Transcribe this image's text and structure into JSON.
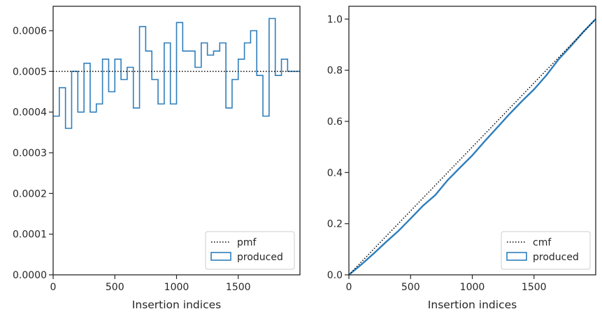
{
  "chart_data": [
    {
      "type": "histogram",
      "title": "",
      "xlabel": "Insertion indices",
      "ylabel": "",
      "xlim": [
        0,
        2000
      ],
      "ylim": [
        0,
        0.00066
      ],
      "x_ticks": [
        0,
        500,
        1000,
        1500
      ],
      "x_tick_labels": [
        "0",
        "500",
        "1000",
        "1500"
      ],
      "y_ticks": [
        0,
        0.0001,
        0.0002,
        0.0003,
        0.0004,
        0.0005,
        0.0006
      ],
      "y_tick_labels": [
        "0.0000",
        "0.0001",
        "0.0002",
        "0.0003",
        "0.0004",
        "0.0005",
        "0.0006"
      ],
      "grid": false,
      "legend_position": "bottom-right",
      "series": [
        {
          "name": "pmf",
          "style": "dotted",
          "color": "#000000",
          "x": [
            0,
            2000
          ],
          "values": [
            0.0005,
            0.0005
          ]
        },
        {
          "name": "produced",
          "style": "step",
          "color": "#2e7ebc",
          "bin_edges": [
            0,
            50,
            100,
            150,
            200,
            250,
            300,
            350,
            400,
            450,
            500,
            550,
            600,
            650,
            700,
            750,
            800,
            850,
            900,
            950,
            1000,
            1050,
            1100,
            1150,
            1200,
            1250,
            1300,
            1350,
            1400,
            1450,
            1500,
            1550,
            1600,
            1650,
            1700,
            1750,
            1800,
            1850,
            1900,
            1950,
            2000
          ],
          "values": [
            0.00039,
            0.00046,
            0.00036,
            0.0005,
            0.0004,
            0.00052,
            0.0004,
            0.00042,
            0.00053,
            0.00045,
            0.00053,
            0.00048,
            0.00051,
            0.00041,
            0.00061,
            0.00055,
            0.00048,
            0.00042,
            0.00057,
            0.00042,
            0.00062,
            0.00055,
            0.00055,
            0.00051,
            0.00057,
            0.00054,
            0.00055,
            0.00057,
            0.00041,
            0.00048,
            0.00053,
            0.00057,
            0.0006,
            0.00049,
            0.00039,
            0.00063,
            0.00049,
            0.00053,
            0.0005,
            0.0005
          ]
        }
      ]
    },
    {
      "type": "line",
      "title": "",
      "xlabel": "Insertion indices",
      "ylabel": "",
      "xlim": [
        0,
        2000
      ],
      "ylim": [
        0,
        1.05
      ],
      "x_ticks": [
        0,
        500,
        1000,
        1500
      ],
      "x_tick_labels": [
        "0",
        "500",
        "1000",
        "1500"
      ],
      "y_ticks": [
        0,
        0.2,
        0.4,
        0.6,
        0.8,
        1.0
      ],
      "y_tick_labels": [
        "0.0",
        "0.2",
        "0.4",
        "0.6",
        "0.8",
        "1.0"
      ],
      "grid": false,
      "legend_position": "bottom-right",
      "series": [
        {
          "name": "cmf",
          "style": "dotted",
          "color": "#000000",
          "x": [
            0,
            2000
          ],
          "values": [
            0,
            1.0
          ]
        },
        {
          "name": "produced",
          "style": "line",
          "color": "#2e7ebc",
          "x": [
            0,
            100,
            200,
            300,
            400,
            500,
            600,
            700,
            800,
            900,
            1000,
            1100,
            1200,
            1300,
            1400,
            1500,
            1600,
            1700,
            1800,
            1900,
            2000
          ],
          "values": [
            0,
            0.04,
            0.083,
            0.128,
            0.171,
            0.22,
            0.27,
            0.312,
            0.37,
            0.419,
            0.467,
            0.522,
            0.575,
            0.628,
            0.678,
            0.725,
            0.78,
            0.843,
            0.895,
            0.95,
            1.0
          ]
        }
      ]
    }
  ]
}
